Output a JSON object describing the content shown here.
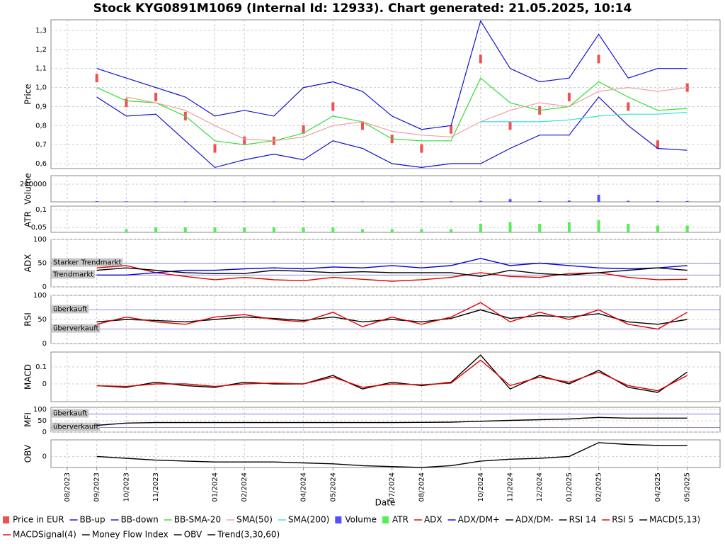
{
  "title": "Stock KYG0891M1069 (Internal Id: 12933). Chart generated: 21.05.2025, 10:14",
  "x_axis": {
    "label": "Date",
    "ticks": [
      "08/2023",
      "09/2023",
      "10/2023",
      "11/2023",
      "01/2024",
      "02/2024",
      "04/2024",
      "05/2024",
      "07/2024",
      "08/2024",
      "10/2024",
      "11/2024",
      "12/2024",
      "01/2025",
      "02/2025",
      "04/2025",
      "05/2025"
    ],
    "x": [
      "09/2023",
      "10/2023",
      "11/2023",
      "12/2023",
      "01/2024",
      "02/2024",
      "03/2024",
      "04/2024",
      "05/2024",
      "06/2024",
      "07/2024",
      "08/2024",
      "09/2024",
      "10/2024",
      "11/2024",
      "12/2024",
      "01/2025",
      "02/2025",
      "03/2025",
      "04/2025",
      "05/2025"
    ]
  },
  "chart_data": [
    {
      "type": "line",
      "ylabel": "Price",
      "ylim": [
        0.574,
        1.356
      ],
      "yticks": [
        {
          "value": 0.6,
          "label": "0,6"
        },
        {
          "value": 0.7,
          "label": "0,7"
        },
        {
          "value": 0.8,
          "label": "0,8"
        },
        {
          "value": 0.9,
          "label": "0,9"
        },
        {
          "value": 1.0,
          "label": "1,0"
        },
        {
          "value": 1.1,
          "label": "1,1"
        },
        {
          "value": 1.2,
          "label": "1,2"
        },
        {
          "value": 1.3,
          "label": "1,3"
        }
      ],
      "grid": true,
      "series": [
        {
          "name": "Price in EUR",
          "color": "#f05050",
          "kind": "bar",
          "values": [
            1.05,
            0.92,
            0.95,
            0.85,
            0.68,
            0.72,
            0.72,
            0.78,
            0.9,
            0.8,
            0.73,
            0.68,
            0.78,
            1.15,
            0.8,
            0.88,
            0.95,
            1.15,
            0.9,
            0.7,
            1.0
          ]
        },
        {
          "name": "BB-up",
          "color": "#1010d0",
          "kind": "line",
          "values": [
            1.1,
            1.05,
            1.0,
            0.95,
            0.85,
            0.88,
            0.85,
            1.0,
            1.03,
            0.98,
            0.85,
            0.78,
            0.8,
            1.35,
            1.1,
            1.03,
            1.05,
            1.28,
            1.05,
            1.1,
            1.1
          ]
        },
        {
          "name": "BB-down",
          "color": "#1010d0",
          "kind": "line",
          "values": [
            0.95,
            0.85,
            0.86,
            0.72,
            0.58,
            0.62,
            0.65,
            0.62,
            0.72,
            0.68,
            0.6,
            0.58,
            0.6,
            0.6,
            0.68,
            0.75,
            0.75,
            0.95,
            0.8,
            0.68,
            0.67
          ]
        },
        {
          "name": "BB-SMA-20",
          "color": "#33dd33",
          "kind": "line",
          "values": [
            1.0,
            0.93,
            0.92,
            0.85,
            0.72,
            0.7,
            0.72,
            0.76,
            0.85,
            0.82,
            0.73,
            0.72,
            0.72,
            1.05,
            0.92,
            0.88,
            0.9,
            1.03,
            0.95,
            0.88,
            0.89
          ]
        },
        {
          "name": "SMA(50)",
          "color": "#f0a0a0",
          "kind": "line",
          "values": [
            null,
            0.95,
            0.92,
            0.88,
            0.8,
            0.73,
            0.72,
            0.74,
            0.8,
            0.82,
            0.77,
            0.75,
            0.74,
            0.82,
            0.88,
            0.92,
            0.9,
            0.98,
            1.0,
            0.98,
            1.0
          ]
        },
        {
          "name": "SMA(200)",
          "color": "#30e0e0",
          "kind": "line",
          "values": [
            null,
            null,
            null,
            null,
            null,
            null,
            null,
            null,
            null,
            null,
            null,
            null,
            null,
            0.82,
            0.82,
            0.82,
            0.83,
            0.85,
            0.86,
            0.86,
            0.87
          ]
        }
      ]
    },
    {
      "type": "line",
      "ylabel": "Volume",
      "ylim": [
        0,
        296000
      ],
      "yticks": [
        200000
      ],
      "grid": true,
      "series": [
        {
          "name": "Volume",
          "color": "#5050ff",
          "kind": "bar",
          "values": [
            8000,
            6000,
            5000,
            5000,
            6000,
            5000,
            5000,
            6000,
            7000,
            5000,
            5000,
            5000,
            6000,
            12000,
            30000,
            10000,
            15000,
            80000,
            12000,
            10000,
            10000
          ]
        }
      ]
    },
    {
      "type": "line",
      "ylabel": "ATR",
      "ylim": [
        0.036,
        0.11
      ],
      "yticks": [
        {
          "value": 0.05,
          "label": "0,05"
        },
        {
          "value": 0.1,
          "label": "0,1"
        }
      ],
      "grid": true,
      "series": [
        {
          "name": "ATR",
          "color": "#55ee55",
          "kind": "bar",
          "values": [
            null,
            0.045,
            0.05,
            0.05,
            0.05,
            0.05,
            0.05,
            0.05,
            0.05,
            0.045,
            0.045,
            0.045,
            0.045,
            0.06,
            0.065,
            0.06,
            0.065,
            0.07,
            0.06,
            0.055,
            0.055
          ]
        }
      ]
    },
    {
      "type": "line",
      "ylabel": "ADX",
      "ylim": [
        0,
        100
      ],
      "yticks": [
        0,
        50,
        100
      ],
      "grid": true,
      "hlines": [
        {
          "value": 50,
          "label": "Starker Trendmarkt"
        },
        {
          "value": 25,
          "label": "Trendmarkt"
        }
      ],
      "series": [
        {
          "name": "ADX",
          "color": "#e00000",
          "kind": "line",
          "values": [
            40,
            45,
            30,
            22,
            15,
            20,
            15,
            13,
            20,
            16,
            12,
            15,
            20,
            30,
            22,
            20,
            28,
            30,
            20,
            15,
            16
          ]
        },
        {
          "name": "ADX/DM+",
          "color": "#0000dd",
          "kind": "line",
          "values": [
            25,
            25,
            30,
            35,
            35,
            38,
            40,
            38,
            42,
            40,
            45,
            40,
            45,
            60,
            45,
            50,
            45,
            40,
            38,
            40,
            45
          ]
        },
        {
          "name": "ADX/DM-",
          "color": "#000000",
          "kind": "line",
          "values": [
            35,
            40,
            35,
            30,
            28,
            28,
            35,
            33,
            30,
            32,
            30,
            30,
            30,
            22,
            35,
            28,
            25,
            30,
            35,
            40,
            35
          ]
        }
      ]
    },
    {
      "type": "line",
      "ylabel": "RSI",
      "ylim": [
        0,
        100
      ],
      "yticks": [
        0,
        50,
        100
      ],
      "grid": true,
      "hlines": [
        {
          "value": 70,
          "label": "überkauft"
        },
        {
          "value": 30,
          "label": "überverkauft"
        }
      ],
      "series": [
        {
          "name": "RSI 14",
          "color": "#000000",
          "kind": "line",
          "values": [
            45,
            50,
            48,
            45,
            50,
            55,
            52,
            48,
            55,
            45,
            50,
            45,
            52,
            70,
            52,
            58,
            55,
            62,
            45,
            40,
            50
          ]
        },
        {
          "name": "RSI 5",
          "color": "#e00000",
          "kind": "line",
          "values": [
            40,
            55,
            45,
            40,
            55,
            60,
            50,
            45,
            65,
            35,
            55,
            40,
            55,
            85,
            45,
            65,
            50,
            70,
            40,
            30,
            65
          ]
        }
      ]
    },
    {
      "type": "line",
      "ylabel": "MACD",
      "ylim": [
        -0.104,
        0.1875
      ],
      "yticks": [
        0,
        0.1
      ],
      "grid": true,
      "series": [
        {
          "name": "MACD(5,13)",
          "color": "#000000",
          "kind": "line",
          "values": [
            -0.01,
            -0.02,
            0.01,
            -0.01,
            -0.02,
            0.01,
            0.0,
            0.0,
            0.05,
            -0.03,
            0.01,
            -0.01,
            0.01,
            0.17,
            -0.03,
            0.05,
            0.0,
            0.08,
            -0.02,
            -0.05,
            0.07
          ]
        },
        {
          "name": "MACDSignal(4)",
          "color": "#e00000",
          "kind": "line",
          "values": [
            -0.01,
            -0.015,
            0.0,
            0.0,
            -0.015,
            0.0,
            0.005,
            0.0,
            0.04,
            -0.02,
            0.0,
            -0.005,
            0.005,
            0.14,
            -0.01,
            0.04,
            0.01,
            0.07,
            -0.01,
            -0.04,
            0.05
          ]
        }
      ]
    },
    {
      "type": "line",
      "ylabel": "MFI",
      "ylim": [
        0,
        110
      ],
      "yticks": [
        0,
        50,
        100
      ],
      "grid": true,
      "hlines": [
        {
          "value": 80,
          "label": "überkauft"
        },
        {
          "value": 20,
          "label": "überverkauft"
        }
      ],
      "series": [
        {
          "name": "Money Flow Index",
          "color": "#000000",
          "kind": "line",
          "values": [
            30,
            40,
            42,
            42,
            42,
            42,
            42,
            42,
            42,
            42,
            42,
            43,
            44,
            48,
            52,
            55,
            58,
            65,
            62,
            62,
            62
          ]
        }
      ]
    },
    {
      "type": "line",
      "ylabel": "OBV",
      "ylim": [
        -12,
        18
      ],
      "yticks": [
        0
      ],
      "grid": true,
      "series": [
        {
          "name": "OBV",
          "color": "#000000",
          "kind": "line",
          "values": [
            0,
            -2,
            -4,
            -5,
            -6,
            -6,
            -6,
            -7,
            -8,
            -10,
            -11,
            -12,
            -10,
            -5,
            -3,
            -2,
            0,
            15,
            13,
            12,
            12
          ]
        },
        {
          "name": "Trend(3,30,60)",
          "color": "#000000",
          "kind": "line",
          "values": [
            null,
            null,
            null,
            null,
            null,
            null,
            null,
            null,
            null,
            null,
            null,
            null,
            null,
            null,
            null,
            null,
            null,
            null,
            null,
            null,
            null
          ]
        }
      ]
    }
  ]
}
